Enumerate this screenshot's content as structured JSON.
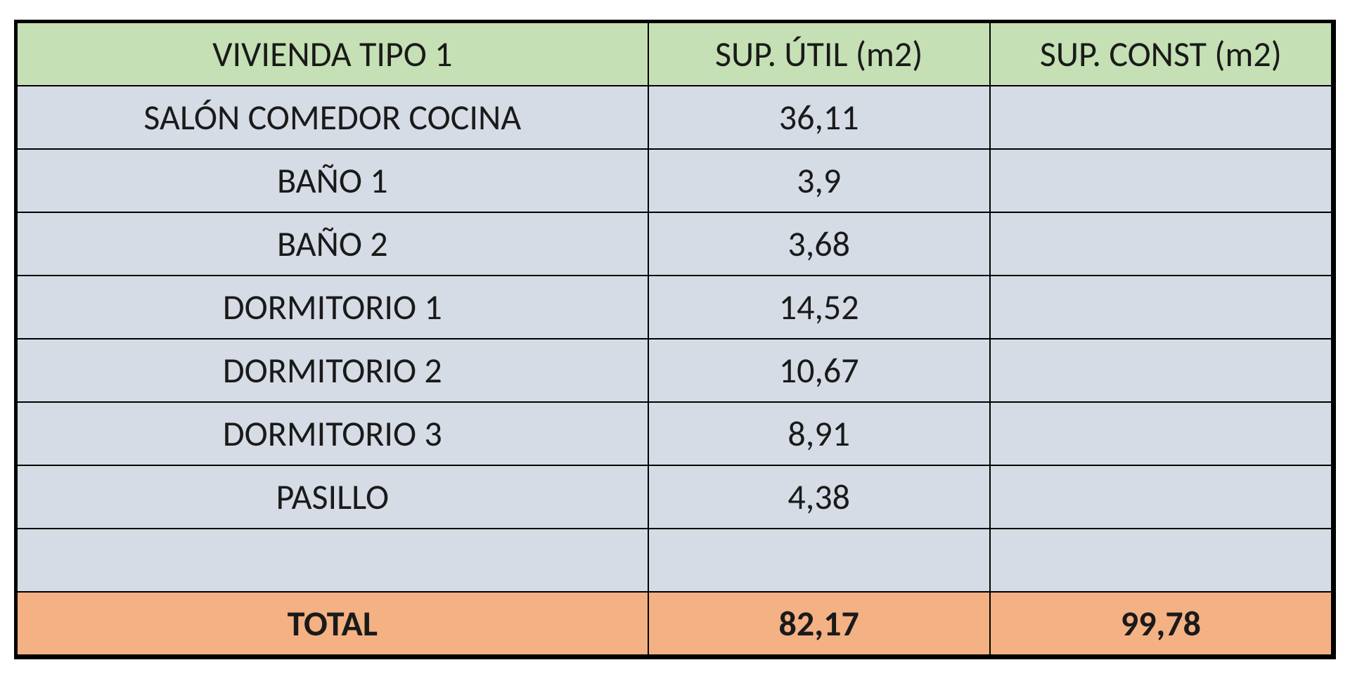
{
  "table": {
    "type": "table",
    "header_bg": "#c5e0b4",
    "body_bg": "#d6dce5",
    "total_bg": "#f4b183",
    "border_color": "#000000",
    "text_color": "#1a1a1a",
    "font_family": "Calibri",
    "font_size_pt": 36,
    "columns": [
      {
        "label": "VIVIENDA TIPO 1",
        "width_pct": 48,
        "align": "center"
      },
      {
        "label": "SUP. ÚTIL (m2)",
        "width_pct": 26,
        "align": "center"
      },
      {
        "label": "SUP. CONST (m2)",
        "width_pct": 26,
        "align": "center"
      }
    ],
    "rows": [
      {
        "name": "SALÓN COMEDOR COCINA",
        "util": "36,11",
        "const": ""
      },
      {
        "name": "BAÑO 1",
        "util": "3,9",
        "const": ""
      },
      {
        "name": "BAÑO 2",
        "util": "3,68",
        "const": ""
      },
      {
        "name": "DORMITORIO 1",
        "util": "14,52",
        "const": ""
      },
      {
        "name": "DORMITORIO 2",
        "util": "10,67",
        "const": ""
      },
      {
        "name": "DORMITORIO 3",
        "util": "8,91",
        "const": ""
      },
      {
        "name": "PASILLO",
        "util": "4,38",
        "const": ""
      }
    ],
    "empty_row": {
      "name": "",
      "util": "",
      "const": ""
    },
    "total": {
      "label": "TOTAL",
      "util": "82,17",
      "const": "99,78"
    }
  }
}
